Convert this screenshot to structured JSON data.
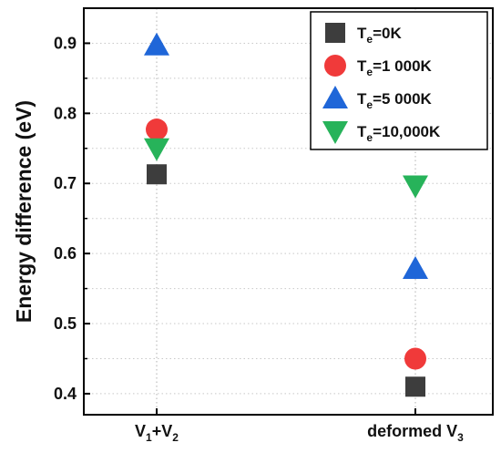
{
  "chart_data": {
    "type": "scatter",
    "categories": [
      {
        "main": "V",
        "sub1": "1",
        "mid": "+V",
        "sub2": "2"
      },
      {
        "main": "deformed V",
        "sub1": "3",
        "mid": "",
        "sub2": ""
      }
    ],
    "ylabel": "Energy difference (eV)",
    "ylim": [
      0.37,
      0.95
    ],
    "yticks": [
      "0.4",
      "0.5",
      "0.6",
      "0.7",
      "0.8",
      "0.9"
    ],
    "grid": "vertical dotted + horizontal minor dotted",
    "legend_position": "top-right",
    "series": [
      {
        "name": "Te=0K",
        "label_main": "T",
        "label_sub": "e",
        "label_rest": "=0K",
        "marker": "square",
        "color": "#3d3d3d",
        "values": [
          0.713,
          0.41
        ]
      },
      {
        "name": "Te=1 000K",
        "label_main": "T",
        "label_sub": "e",
        "label_rest": "=1 000K",
        "marker": "circle",
        "color": "#f03a3a",
        "values": [
          0.777,
          0.45
        ]
      },
      {
        "name": "Te=5 000K",
        "label_main": "T",
        "label_sub": "e",
        "label_rest": "=5 000K",
        "marker": "triangle-up",
        "color": "#1f66d8",
        "values": [
          0.897,
          0.578
        ]
      },
      {
        "name": "Te=10,000K",
        "label_main": "T",
        "label_sub": "e",
        "label_rest": "=10,000K",
        "marker": "triangle-down",
        "color": "#27b35a",
        "values": [
          0.75,
          0.697
        ]
      }
    ]
  }
}
